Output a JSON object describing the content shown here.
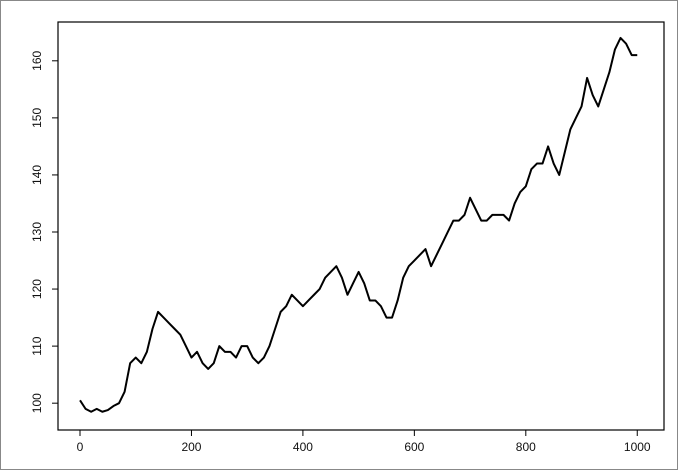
{
  "chart_data": {
    "type": "line",
    "x": [
      0,
      10,
      20,
      30,
      40,
      50,
      60,
      70,
      80,
      90,
      100,
      110,
      120,
      130,
      140,
      150,
      160,
      170,
      180,
      190,
      200,
      210,
      220,
      230,
      240,
      250,
      260,
      270,
      280,
      290,
      300,
      310,
      320,
      330,
      340,
      350,
      360,
      370,
      380,
      390,
      400,
      410,
      420,
      430,
      440,
      450,
      460,
      470,
      480,
      490,
      500,
      510,
      520,
      530,
      540,
      550,
      560,
      570,
      580,
      590,
      600,
      610,
      620,
      630,
      640,
      650,
      660,
      670,
      680,
      690,
      700,
      710,
      720,
      730,
      740,
      750,
      760,
      770,
      780,
      790,
      800,
      810,
      820,
      830,
      840,
      850,
      860,
      870,
      880,
      890,
      900,
      910,
      920,
      930,
      940,
      950,
      960,
      970,
      980,
      990,
      1000
    ],
    "series": [
      {
        "color": "#000000",
        "values": [
          100.5,
          99,
          98.5,
          99,
          98.5,
          98.8,
          99.5,
          100,
          102,
          107,
          108,
          107,
          109,
          113,
          116,
          115,
          114,
          113,
          112,
          110,
          108,
          109,
          107,
          106,
          107,
          110,
          109,
          109,
          108,
          110,
          110,
          108,
          107,
          108,
          110,
          113,
          116,
          117,
          119,
          118,
          117,
          118,
          119,
          120,
          122,
          123,
          124,
          122,
          119,
          121,
          123,
          121,
          118,
          118,
          117,
          115,
          115,
          118,
          122,
          124,
          125,
          126,
          127,
          124,
          126,
          128,
          130,
          132,
          132,
          133,
          136,
          134,
          132,
          132,
          133,
          133,
          133,
          132,
          135,
          137,
          138,
          141,
          142,
          142,
          145,
          142,
          140,
          144,
          148,
          150,
          152,
          157,
          154,
          152,
          155,
          158,
          162,
          164,
          163,
          161,
          161
        ]
      }
    ],
    "xlim": [
      -39.5,
      1048
    ],
    "ylim": [
      95.3,
      166.8
    ],
    "xticks": [
      0,
      200,
      400,
      600,
      800,
      1000
    ],
    "yticks": [
      100,
      110,
      120,
      130,
      140,
      150,
      160
    ]
  }
}
